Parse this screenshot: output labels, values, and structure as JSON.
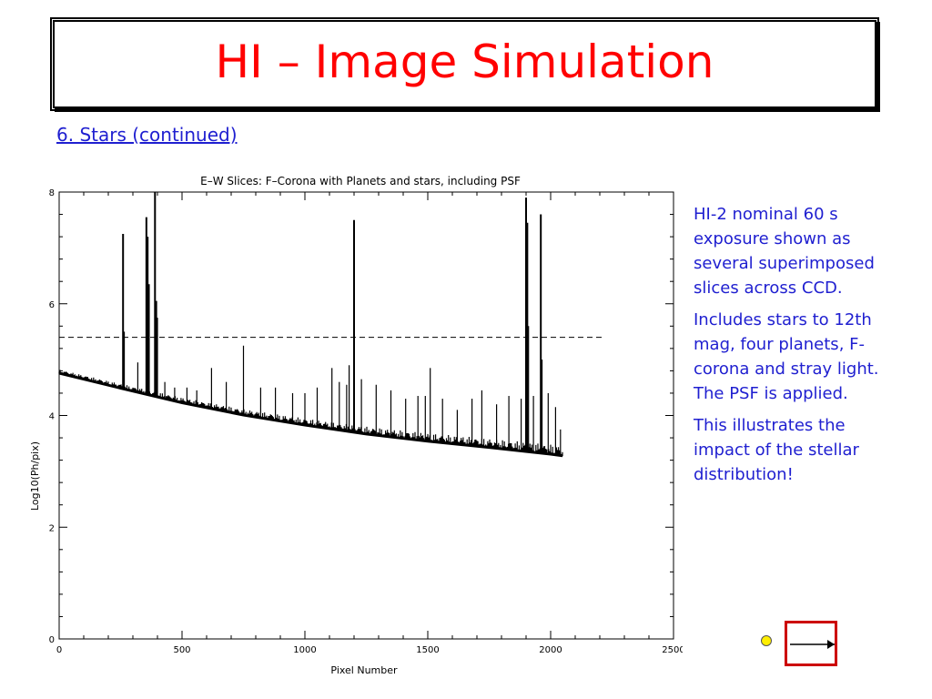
{
  "slide": {
    "title": "HI – Image Simulation",
    "subtitle": "6. Stars (continued)",
    "notes": [
      "HI-2 nominal 60 s exposure shown as several superimposed slices across CCD.",
      "Includes stars to 12th mag, four planets, F-corona and stray light. The PSF is applied.",
      "This illustrates the impact of the stellar distribution!"
    ]
  },
  "colors": {
    "title": "#ff0000",
    "body_text": "#1f1fd0",
    "plot": "#000000",
    "nav_box": "#cc0000",
    "nav_dot": "#ffee00"
  },
  "icons": {
    "nav_dot": "dot-icon",
    "nav_next": "arrow-right-icon"
  },
  "chart_data": {
    "type": "line",
    "title": "E–W Slices: F–Corona with Planets and stars, including PSF",
    "xlabel": "Pixel Number",
    "ylabel": "Log10(Ph/pix)",
    "xlim": [
      0,
      2500
    ],
    "ylim": [
      0,
      8
    ],
    "xticks": [
      0,
      500,
      1000,
      1500,
      2000,
      2500
    ],
    "yticks": [
      0,
      2,
      4,
      6,
      8
    ],
    "grid": false,
    "threshold": 5.4,
    "baseline": [
      [
        0,
        4.75
      ],
      [
        250,
        4.48
      ],
      [
        500,
        4.22
      ],
      [
        750,
        4.0
      ],
      [
        1000,
        3.82
      ],
      [
        1250,
        3.66
      ],
      [
        1500,
        3.53
      ],
      [
        1750,
        3.42
      ],
      [
        2000,
        3.3
      ],
      [
        2048,
        3.27
      ]
    ],
    "spikes": [
      [
        260,
        7.25
      ],
      [
        265,
        5.5
      ],
      [
        320,
        4.95
      ],
      [
        355,
        7.55
      ],
      [
        360,
        7.2
      ],
      [
        365,
        6.35
      ],
      [
        390,
        8.0
      ],
      [
        395,
        6.05
      ],
      [
        400,
        5.75
      ],
      [
        430,
        4.6
      ],
      [
        470,
        4.5
      ],
      [
        520,
        4.5
      ],
      [
        560,
        4.45
      ],
      [
        620,
        4.85
      ],
      [
        680,
        4.6
      ],
      [
        750,
        5.25
      ],
      [
        820,
        4.5
      ],
      [
        880,
        4.5
      ],
      [
        950,
        4.4
      ],
      [
        1000,
        4.4
      ],
      [
        1050,
        4.5
      ],
      [
        1110,
        4.85
      ],
      [
        1140,
        4.6
      ],
      [
        1170,
        4.55
      ],
      [
        1180,
        4.9
      ],
      [
        1200,
        7.5
      ],
      [
        1230,
        4.65
      ],
      [
        1290,
        4.55
      ],
      [
        1350,
        4.45
      ],
      [
        1410,
        4.3
      ],
      [
        1460,
        4.35
      ],
      [
        1490,
        4.35
      ],
      [
        1510,
        4.85
      ],
      [
        1560,
        4.3
      ],
      [
        1620,
        4.1
      ],
      [
        1680,
        4.3
      ],
      [
        1720,
        4.45
      ],
      [
        1780,
        4.2
      ],
      [
        1830,
        4.35
      ],
      [
        1880,
        4.3
      ],
      [
        1900,
        7.9
      ],
      [
        1905,
        7.45
      ],
      [
        1910,
        5.6
      ],
      [
        1930,
        4.35
      ],
      [
        1960,
        7.6
      ],
      [
        1965,
        5.0
      ],
      [
        1990,
        4.4
      ],
      [
        2020,
        4.15
      ],
      [
        2040,
        3.75
      ]
    ]
  }
}
